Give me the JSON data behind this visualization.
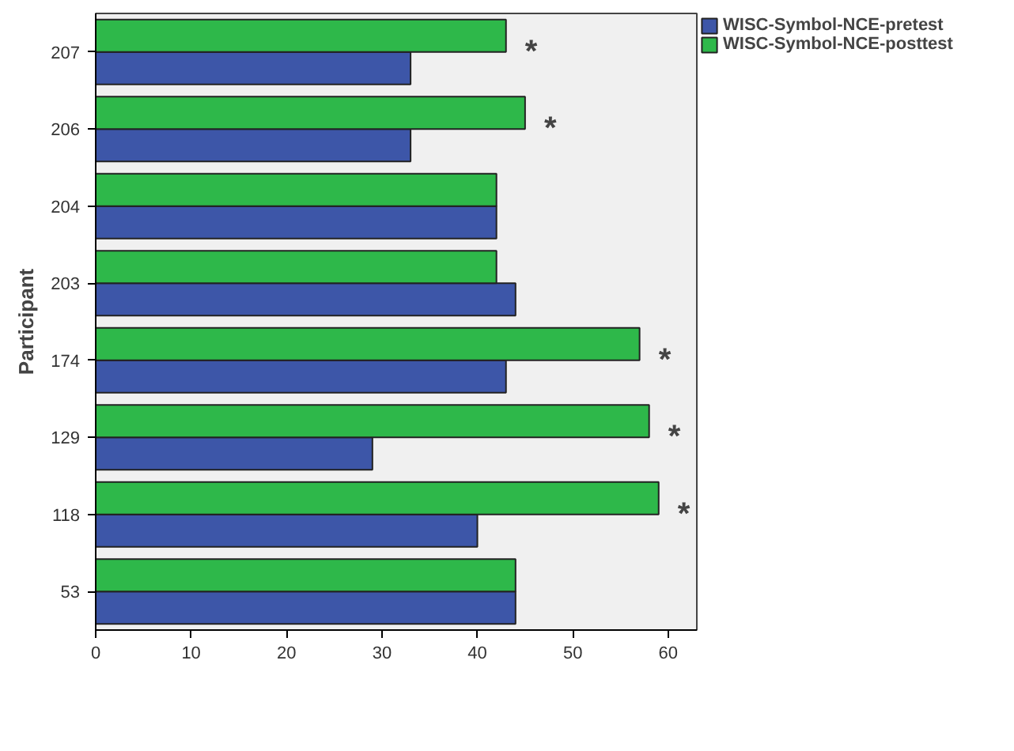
{
  "chart_data": {
    "type": "bar",
    "orientation": "horizontal",
    "ylabel": "Participant",
    "categories": [
      "207",
      "206",
      "204",
      "203",
      "174",
      "129",
      "118",
      "53"
    ],
    "series": [
      {
        "name": "WISC-Symbol-NCE-pretest",
        "color": "#3d56a8",
        "values": [
          33,
          33,
          42,
          44,
          43,
          29,
          40,
          44
        ]
      },
      {
        "name": "WISC-Symbol-NCE-posttest",
        "color": "#2eb84a",
        "values": [
          43,
          45,
          42,
          42,
          57,
          58,
          59,
          44
        ]
      }
    ],
    "xlim": [
      0,
      63
    ],
    "xticks": [
      0,
      10,
      20,
      30,
      40,
      50,
      60
    ],
    "grid": false,
    "legend": "top right",
    "annotations": [
      "*",
      "*",
      "*",
      "*",
      "*"
    ]
  }
}
